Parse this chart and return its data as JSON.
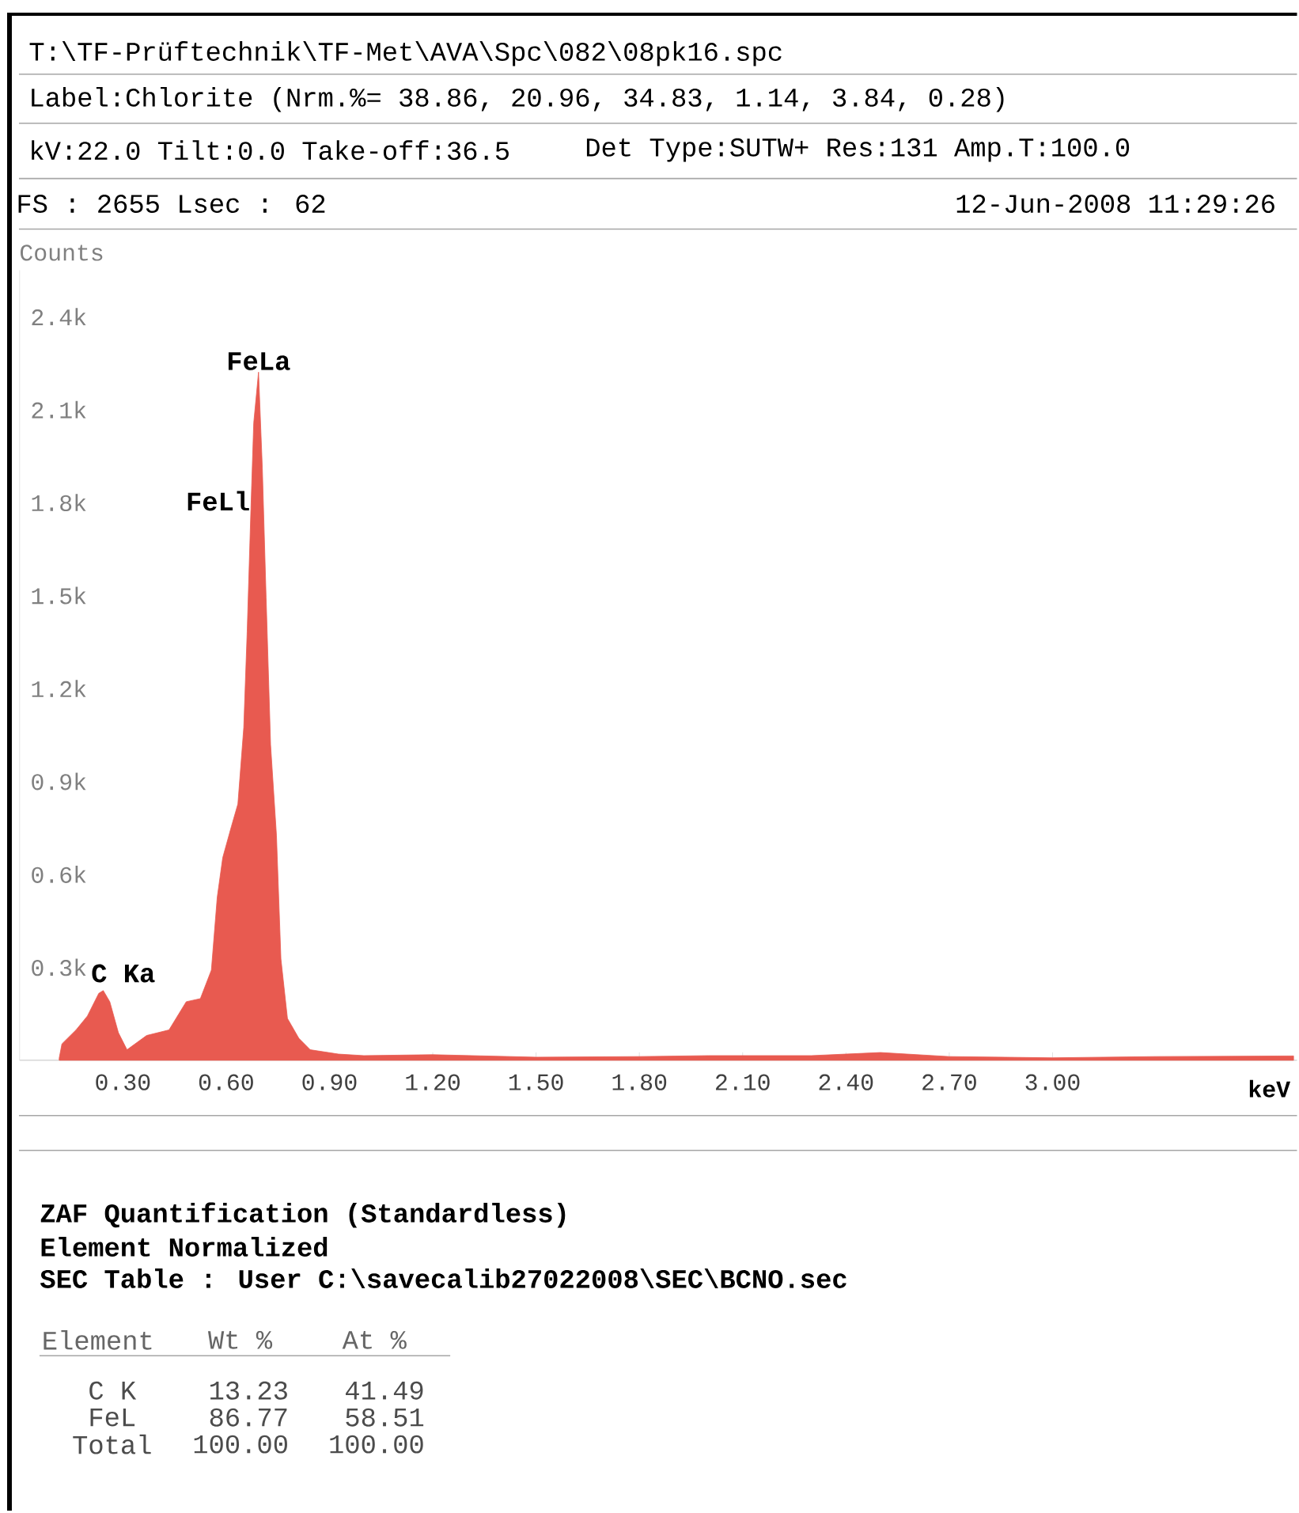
{
  "chart_data": {
    "type": "area",
    "xlabel": "keV",
    "ylabel": "Counts",
    "x": [
      0.115,
      0.123,
      0.164,
      0.197,
      0.23,
      0.243,
      0.262,
      0.287,
      0.312,
      0.369,
      0.434,
      0.484,
      0.525,
      0.557,
      0.574,
      0.59,
      0.615,
      0.634,
      0.651,
      0.661,
      0.672,
      0.68,
      0.694,
      0.705,
      0.716,
      0.729,
      0.746,
      0.759,
      0.778,
      0.811,
      0.844,
      0.926,
      1.0,
      1.2,
      1.5,
      1.8,
      2.0,
      2.3,
      2.5,
      2.7,
      3.0,
      3.3,
      3.7
    ],
    "series": [
      {
        "color": "#e85a50",
        "values": [
          7,
          53,
          98,
          143,
          216,
          225,
          189,
          89,
          34,
          80,
          98,
          189,
          199,
          291,
          526,
          654,
          754,
          827,
          1073,
          1383,
          1784,
          2057,
          2221,
          1911,
          1492,
          1018,
          727,
          327,
          135,
          71,
          34,
          20,
          15,
          18,
          10,
          12,
          15,
          15,
          25,
          12,
          8,
          12,
          14
        ]
      }
    ],
    "xlim": [
      0,
      3.71
    ],
    "ylim": [
      0,
      2550
    ],
    "xticks": [
      {
        "value": 0.3,
        "label": "0.30"
      },
      {
        "value": 0.6,
        "label": "0.60"
      },
      {
        "value": 0.9,
        "label": "0.90"
      },
      {
        "value": 1.2,
        "label": "1.20"
      },
      {
        "value": 1.5,
        "label": "1.50"
      },
      {
        "value": 1.8,
        "label": "1.80"
      },
      {
        "value": 2.1,
        "label": "2.10"
      },
      {
        "value": 2.4,
        "label": "2.40"
      },
      {
        "value": 2.7,
        "label": "2.70"
      },
      {
        "value": 3.0,
        "label": "3.00"
      }
    ],
    "yticks": [
      {
        "value": 300,
        "label": "0.3k"
      },
      {
        "value": 600,
        "label": "0.6k"
      },
      {
        "value": 900,
        "label": "0.9k"
      },
      {
        "value": 1200,
        "label": "1.2k"
      },
      {
        "value": 1500,
        "label": "1.5k"
      },
      {
        "value": 1800,
        "label": "1.8k"
      },
      {
        "value": 2100,
        "label": "2.1k"
      },
      {
        "value": 2400,
        "label": "2.4k"
      }
    ],
    "annotations": [
      "T:\\TF-Prüftechnik\\TF-Met\\AVA\\Spc\\082\\08pk16.spc",
      "Label:Chlorite (Nrm.%= 38.86, 20.96, 34.83, 1.14, 3.84, 0.28)",
      "kV:22.0 Tilt:0.0 Take-off:36.5",
      "Det Type:SUTW+ Res:131 Amp.T:100.0",
      "FS : 2655  Lsec : 62",
      "12-Jun-2008 11:29:26",
      {
        "text": "FeLa",
        "x": 0.694,
        "y": 2221
      },
      "FeLl",
      "C Ka",
      "ZAF Quantification (Standardless)",
      "Element Normalized",
      "SEC Table : User  C:\\savecalib27022008\\SEC\\BCNO.sec",
      "Element",
      "Wt %",
      "At %",
      "C K",
      "13.23",
      "41.49",
      "FeL",
      "86.77",
      "58.51",
      "Total",
      "100.00",
      "100.00"
    ]
  }
}
